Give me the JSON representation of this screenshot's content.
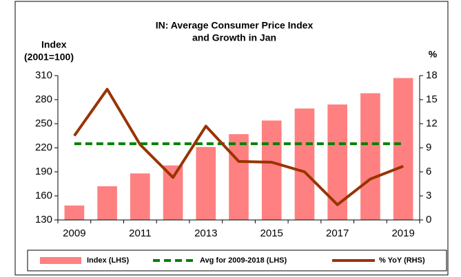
{
  "chart_data": {
    "type": "bar",
    "title": [
      "IN: Average Consumer Price Index",
      "and Growth in Jan"
    ],
    "y_label": [
      "Index",
      "(2001=100)"
    ],
    "y2_label": "%",
    "categories": [
      "2009",
      null,
      "2011",
      null,
      "2013",
      null,
      "2015",
      null,
      "2017",
      null,
      "2019"
    ],
    "series": [
      {
        "name": "Index (LHS)",
        "type": "bar",
        "color": "#ff8080",
        "values": [
          148,
          172,
          188,
          198,
          221,
          237,
          254,
          269,
          274,
          288,
          307
        ]
      },
      {
        "name": "Avg for 2009-2018 (LHS)",
        "type": "dashed",
        "color": "#008000",
        "value": 225
      },
      {
        "name": "% YoY (RHS)",
        "type": "line",
        "axis": "y2",
        "color": "#993300",
        "values": [
          10.5,
          16.3,
          9.4,
          5.3,
          11.7,
          7.3,
          7.2,
          6.0,
          1.9,
          5.1,
          6.7
        ]
      }
    ],
    "ylim": [
      130,
      310
    ],
    "yticks": [
      130,
      160,
      190,
      220,
      250,
      280,
      310
    ],
    "y2lim": [
      0,
      18
    ],
    "y2ticks": [
      0,
      3,
      6,
      9,
      12,
      15,
      18
    ],
    "legend": "bottom"
  }
}
